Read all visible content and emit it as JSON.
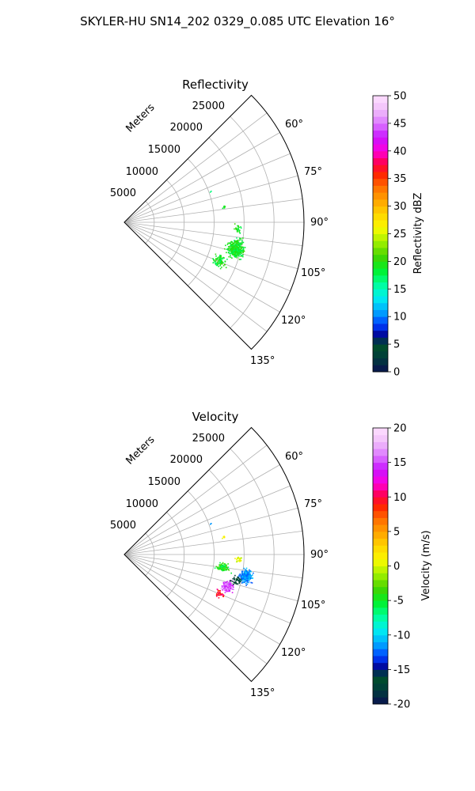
{
  "figure": {
    "suptitle": "SKYLER-HU  SN14_202  0329_0.085 UTC Elevation 16°"
  },
  "chart_data": [
    {
      "type": "polar-sector",
      "title": "Reflectivity",
      "radial_label": "Meters",
      "r_ticks": [
        "5000",
        "10000",
        "15000",
        "20000",
        "25000"
      ],
      "theta_ticks": [
        "60°",
        "75°",
        "90°",
        "105°",
        "120°",
        "135°"
      ],
      "r_range": [
        0,
        30000
      ],
      "theta_range_deg": [
        45,
        135
      ],
      "grid": true,
      "colorbar": {
        "label": "Reflectivity dBZ",
        "range": [
          0,
          50
        ],
        "ticks": [
          "0",
          "5",
          "10",
          "15",
          "20",
          "25",
          "30",
          "35",
          "40",
          "45",
          "50"
        ]
      },
      "clusters": [
        {
          "az": 103,
          "r": 19000,
          "sr": 1200,
          "st": 3.8,
          "n": 420,
          "values": [
            17,
            21
          ],
          "seed": 11
        },
        {
          "az": 112,
          "r": 17000,
          "sr": 1100,
          "st": 3.0,
          "n": 90,
          "values": [
            17,
            21
          ],
          "seed": 12
        },
        {
          "az": 93,
          "r": 19000,
          "sr": 600,
          "st": 1.8,
          "n": 30,
          "values": [
            17,
            21
          ],
          "seed": 13
        },
        {
          "az": 81,
          "r": 16800,
          "sr": 250,
          "st": 0.8,
          "n": 6,
          "values": [
            18,
            20
          ],
          "seed": 14
        },
        {
          "az": 70,
          "r": 15300,
          "sr": 150,
          "st": 0.5,
          "n": 2,
          "values": [
            16,
            17
          ],
          "seed": 15
        }
      ]
    },
    {
      "type": "polar-sector",
      "title": "Velocity",
      "radial_label": "Meters",
      "r_ticks": [
        "5000",
        "10000",
        "15000",
        "20000",
        "25000"
      ],
      "theta_ticks": [
        "60°",
        "75°",
        "90°",
        "105°",
        "120°",
        "135°"
      ],
      "r_range": [
        0,
        30000
      ],
      "theta_range_deg": [
        45,
        135
      ],
      "grid": true,
      "colorbar": {
        "label": "Velocity (m/s)",
        "range": [
          -20,
          20
        ],
        "ticks": [
          "-20",
          "-15",
          "-10",
          "-5",
          "0",
          "5",
          "10",
          "15",
          "20"
        ]
      },
      "clusters": [
        {
          "az": 100,
          "r": 20500,
          "sr": 900,
          "st": 2.8,
          "n": 260,
          "values": [
            -13,
            -10
          ],
          "seed": 21
        },
        {
          "az": 97,
          "r": 16500,
          "sr": 900,
          "st": 2.0,
          "n": 110,
          "values": [
            -7,
            -2
          ],
          "seed": 22
        },
        {
          "az": 107,
          "r": 18000,
          "sr": 900,
          "st": 2.5,
          "n": 120,
          "values": [
            13,
            17
          ],
          "seed": 23
        },
        {
          "az": 112,
          "r": 17000,
          "sr": 700,
          "st": 2.0,
          "n": 40,
          "values": [
            8,
            12
          ],
          "seed": 24
        },
        {
          "az": 103,
          "r": 19000,
          "sr": 800,
          "st": 2.5,
          "n": 40,
          "values": [
            -18,
            -16
          ],
          "seed": 25
        },
        {
          "az": 92,
          "r": 19000,
          "sr": 500,
          "st": 1.5,
          "n": 25,
          "values": [
            -1,
            2
          ],
          "seed": 26
        },
        {
          "az": 80,
          "r": 16800,
          "sr": 250,
          "st": 0.7,
          "n": 6,
          "values": [
            0,
            3
          ],
          "seed": 27
        },
        {
          "az": 70,
          "r": 15300,
          "sr": 150,
          "st": 0.5,
          "n": 2,
          "values": [
            -12,
            -11
          ],
          "seed": 28
        }
      ]
    }
  ]
}
